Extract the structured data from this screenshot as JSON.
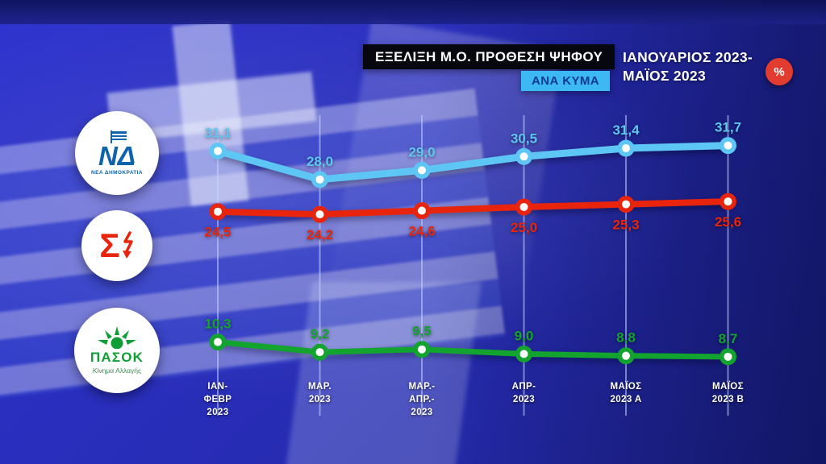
{
  "header": {
    "title": "ΕΞΕΛΙΞΗ Μ.Ο. ΠΡΟΘΕΣΗ ΨΗΦΟΥ",
    "badge": "ΑΝΑ ΚΥΜΑ",
    "period_line1": "ΙΑΝΟΥΑΡΙΟΣ 2023-",
    "period_line2": "ΜΑΪΟΣ 2023",
    "percent_symbol": "%",
    "badge_color": "#3cb9f2",
    "badge_text_color": "#0d3a8f"
  },
  "logos": {
    "nd": {
      "abbr": "ΝΔ",
      "name": "ΝΕΑ ΔΗΜΟΚΡΑΤΙΑ",
      "color": "#0e63ae"
    },
    "syriza": {
      "symbol": "Σ",
      "color": "#e8250c"
    },
    "pasok": {
      "name": "ΠΑΣΟΚ",
      "subtitle": "Κίνημα Αλλαγής",
      "color": "#0f9e35"
    }
  },
  "chart_data": {
    "type": "line",
    "title": "ΕΞΕΛΙΞΗ Μ.Ο. ΠΡΟΘΕΣΗ ΨΗΦΟΥ",
    "subtitle": "ΑΝΑ ΚΥΜΑ — ΙΑΝΟΥΑΡΙΟΣ 2023 - ΜΑΪΟΣ 2023",
    "value_suffix": "%",
    "decimal_separator": ",",
    "ylim": [
      0,
      35
    ],
    "grid": "vertical",
    "legend_position": "left-logos",
    "categories": [
      [
        "ΙΑΝ-",
        "ΦΕΒΡ",
        "2023"
      ],
      [
        "ΜΑΡ.",
        "2023"
      ],
      [
        "ΜΑΡ.-",
        "ΑΠΡ.-",
        "2023"
      ],
      [
        "ΑΠΡ-",
        "2023"
      ],
      [
        "ΜΑΪΟΣ",
        "2023 Α"
      ],
      [
        "ΜΑΪΟΣ",
        "2023 Β"
      ]
    ],
    "series": [
      {
        "name": "ΝΔ",
        "color": "#5ec6f5",
        "stroke": 9,
        "values": [
          31.1,
          28.0,
          29.0,
          30.5,
          31.4,
          31.7
        ],
        "label_position": "above"
      },
      {
        "name": "ΣΥΡΙΖΑ",
        "color": "#e8250c",
        "stroke": 8,
        "values": [
          24.5,
          24.2,
          24.6,
          25.0,
          25.3,
          25.6
        ],
        "label_position": "below"
      },
      {
        "name": "ΠΑΣΟΚ",
        "color": "#12a42e",
        "stroke": 7,
        "values": [
          10.3,
          9.2,
          9.5,
          9.0,
          8.8,
          8.7
        ],
        "label_position": "above"
      }
    ]
  }
}
